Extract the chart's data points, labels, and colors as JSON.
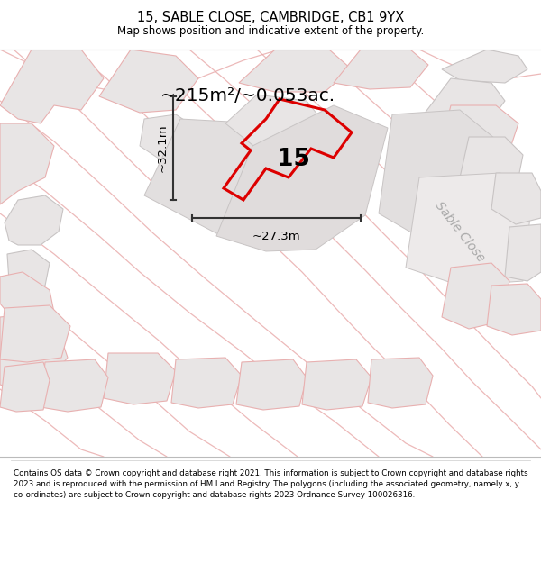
{
  "title": "15, SABLE CLOSE, CAMBRIDGE, CB1 9YX",
  "subtitle": "Map shows position and indicative extent of the property.",
  "area_label": "~215m²/~0.053ac.",
  "number_label": "15",
  "width_label": "~27.3m",
  "height_label": "~32.1m",
  "street_label": "Sable Close",
  "footer": "Contains OS data © Crown copyright and database right 2021. This information is subject to Crown copyright and database rights 2023 and is reproduced with the permission of HM Land Registry. The polygons (including the associated geometry, namely x, y co-ordinates) are subject to Crown copyright and database rights 2023 Ordnance Survey 100026316.",
  "bg_color": "#ffffff",
  "map_bg": "#f7f4f4",
  "property_color": "#dd0000",
  "building_fill": "#e8e5e5",
  "building_stroke_light": "#e8b0b0",
  "building_stroke_grey": "#c8c4c4",
  "dim_color": "#333333",
  "street_color": "#c8c0c0"
}
